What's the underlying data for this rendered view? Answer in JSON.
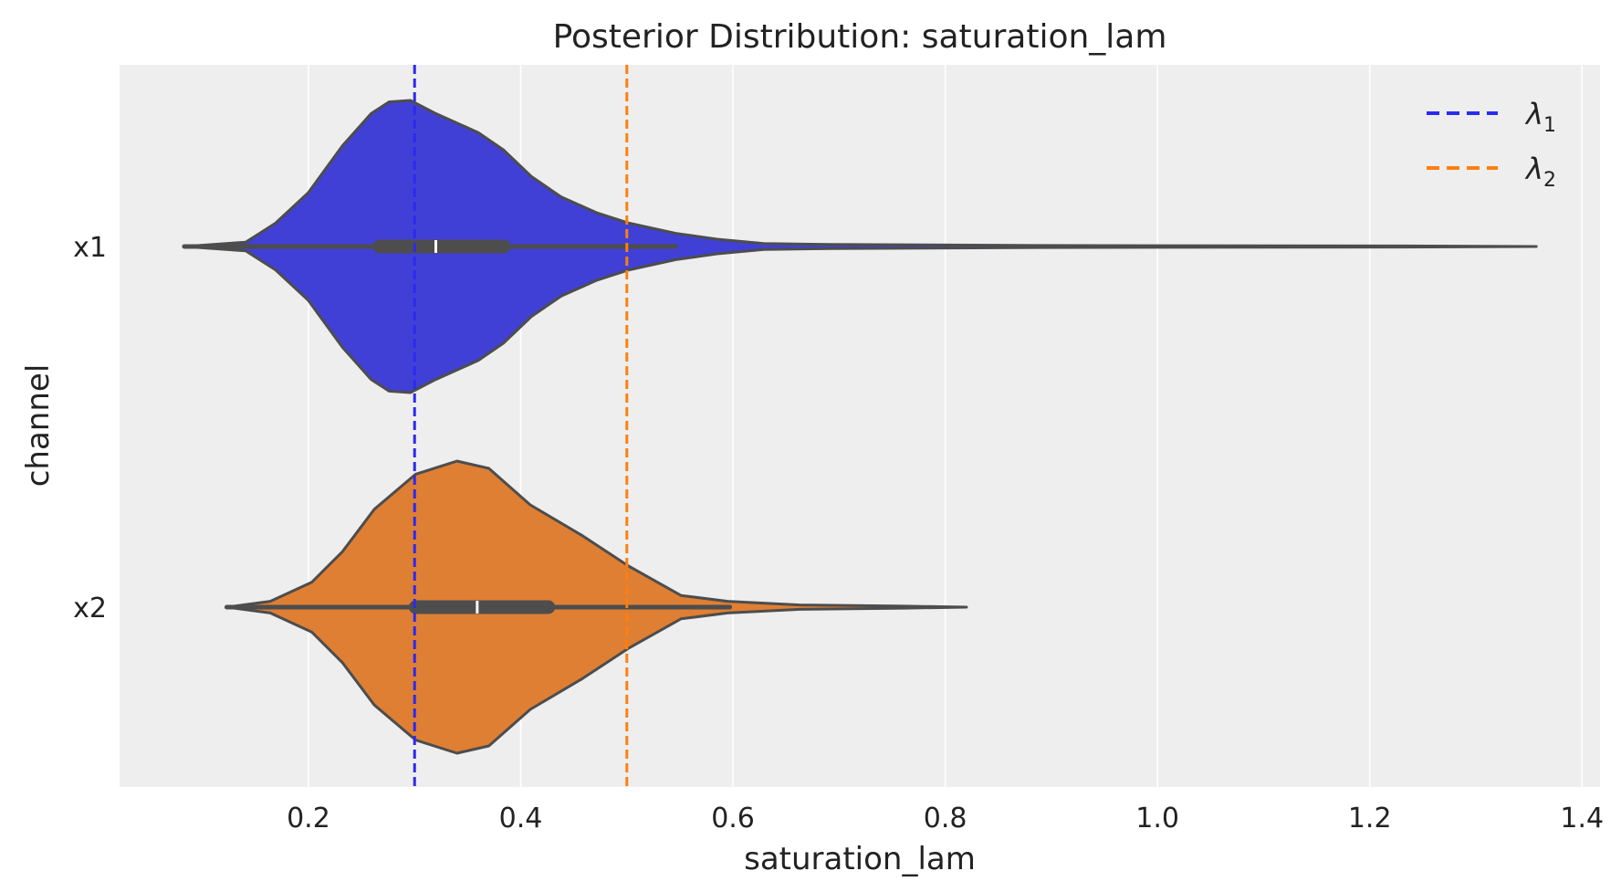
{
  "chart_data": {
    "type": "violin",
    "title": "Posterior Distribution: saturation_lam",
    "xlabel": "saturation_lam",
    "ylabel": "channel",
    "xlim": [
      0.022,
      1.417
    ],
    "xticks": [
      0.2,
      0.4,
      0.6,
      0.8,
      1.0,
      1.2,
      1.4
    ],
    "xtick_labels": [
      "0.2",
      "0.4",
      "0.6",
      "0.8",
      "1.0",
      "1.2",
      "1.4"
    ],
    "grid": true,
    "categories": [
      "x1",
      "x2"
    ],
    "series": [
      {
        "name": "x1",
        "color": "#4040d6",
        "density": [
          [
            0.083,
            0
          ],
          [
            0.141,
            0.03
          ],
          [
            0.169,
            0.16
          ],
          [
            0.2,
            0.37
          ],
          [
            0.232,
            0.69
          ],
          [
            0.259,
            0.91
          ],
          [
            0.276,
            0.99
          ],
          [
            0.296,
            1.0
          ],
          [
            0.32,
            0.91
          ],
          [
            0.36,
            0.78
          ],
          [
            0.384,
            0.66
          ],
          [
            0.41,
            0.48
          ],
          [
            0.438,
            0.34
          ],
          [
            0.472,
            0.23
          ],
          [
            0.502,
            0.16
          ],
          [
            0.546,
            0.09
          ],
          [
            0.585,
            0.05
          ],
          [
            0.629,
            0.02
          ],
          [
            0.693,
            0.014
          ],
          [
            0.889,
            0.007
          ],
          [
            1.231,
            0.004
          ],
          [
            1.357,
            0
          ]
        ],
        "whisker": [
          0.083,
          0.546
        ],
        "quartiles": [
          0.267,
          0.384
        ],
        "median": 0.32
      },
      {
        "name": "x2",
        "color": "#df7f33",
        "density": [
          [
            0.123,
            0
          ],
          [
            0.164,
            0.04
          ],
          [
            0.203,
            0.17
          ],
          [
            0.232,
            0.38
          ],
          [
            0.262,
            0.67
          ],
          [
            0.301,
            0.91
          ],
          [
            0.34,
            1.0
          ],
          [
            0.37,
            0.95
          ],
          [
            0.409,
            0.7
          ],
          [
            0.458,
            0.49
          ],
          [
            0.502,
            0.28
          ],
          [
            0.551,
            0.08
          ],
          [
            0.595,
            0.04
          ],
          [
            0.663,
            0.015
          ],
          [
            0.761,
            0.007
          ],
          [
            0.82,
            0
          ]
        ],
        "whisker": [
          0.123,
          0.597
        ],
        "quartiles": [
          0.301,
          0.426
        ],
        "median": 0.359
      }
    ],
    "reference_lines": [
      {
        "label": "λ",
        "sub": "1",
        "value": 0.3,
        "color": "#2a2af0"
      },
      {
        "label": "λ",
        "sub": "2",
        "value": 0.5,
        "color": "#ff7f0e"
      }
    ],
    "legend_placement": "top-right"
  }
}
